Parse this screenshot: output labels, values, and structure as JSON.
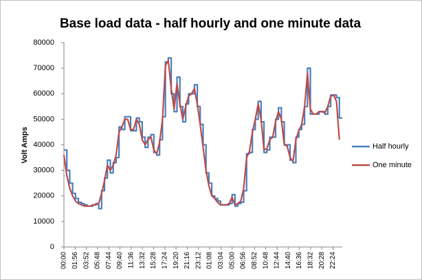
{
  "chart_data": {
    "type": "line",
    "title": "Base load data - half hourly and one minute data",
    "y_label": "Volt Amps",
    "x": [
      0,
      30,
      60,
      90,
      120,
      150,
      180,
      210,
      240,
      270,
      300,
      330,
      360,
      390,
      420,
      450,
      480,
      510,
      540,
      570,
      600,
      630,
      660,
      690,
      720,
      750,
      780,
      810,
      840,
      870,
      900,
      930,
      960,
      990,
      1020,
      1050,
      1080,
      1110,
      1140,
      1170,
      1200,
      1230,
      1260,
      1290,
      1320,
      1350,
      1380,
      1410,
      1440,
      1470,
      1500,
      1530,
      1560,
      1590,
      1620,
      1650,
      1680,
      1710,
      1740,
      1770,
      1800,
      1830,
      1860,
      1890,
      1920,
      1950,
      1980,
      2010,
      2040,
      2070,
      2100,
      2130,
      2160,
      2190,
      2220,
      2250,
      2280,
      2310,
      2340,
      2370,
      2400,
      2430,
      2460,
      2490,
      2520,
      2550,
      2580,
      2610,
      2640,
      2670,
      2700,
      2730,
      2760,
      2790,
      2820,
      2850
    ],
    "series": [
      {
        "name": "Half hourly",
        "color": "#4a7ebb",
        "step": true,
        "values": [
          38000,
          30000,
          25000,
          21000,
          19000,
          17500,
          17000,
          16500,
          16000,
          16000,
          16500,
          17000,
          15000,
          22000,
          27000,
          34000,
          29000,
          33000,
          35000,
          47000,
          46000,
          51000,
          51000,
          45500,
          45500,
          50500,
          49000,
          43000,
          39000,
          43000,
          44000,
          37000,
          36000,
          42000,
          51000,
          72500,
          74000,
          60000,
          53000,
          66500,
          55000,
          49000,
          56000,
          60000,
          60000,
          63500,
          55000,
          48000,
          40000,
          29000,
          25000,
          20000,
          19000,
          18000,
          16500,
          16500,
          16500,
          17000,
          20500,
          16000,
          17000,
          17500,
          22000,
          36500,
          37000,
          46000,
          50000,
          57000,
          49000,
          37000,
          38000,
          43000,
          43000,
          50000,
          54500,
          49000,
          40000,
          40000,
          34000,
          33000,
          43000,
          46000,
          48000,
          55000,
          70000,
          52000,
          52000,
          52000,
          53000,
          53000,
          52000,
          55000,
          59500,
          59500,
          58500,
          50500
        ]
      },
      {
        "name": "One minute",
        "color": "#be4b48",
        "step": false,
        "values": [
          36000,
          28000,
          23000,
          20000,
          18000,
          17000,
          16500,
          16000,
          16000,
          16000,
          16500,
          16500,
          17000,
          21000,
          26000,
          32000,
          30000,
          32000,
          36000,
          45000,
          47000,
          50000,
          50000,
          46000,
          46000,
          50000,
          48000,
          42000,
          40000,
          42000,
          43000,
          38000,
          36500,
          41000,
          50000,
          71000,
          73000,
          62000,
          54000,
          64000,
          56000,
          50000,
          55000,
          59000,
          60000,
          62000,
          56000,
          48000,
          39000,
          30000,
          24000,
          20000,
          19000,
          17500,
          16500,
          16500,
          16500,
          17000,
          19500,
          16500,
          17000,
          18000,
          23000,
          35000,
          37500,
          45000,
          50000,
          56000,
          50000,
          38000,
          38500,
          42000,
          43000,
          49000,
          53000,
          50000,
          40000,
          39500,
          35000,
          33500,
          42000,
          45500,
          48000,
          55000,
          68000,
          54000,
          52000,
          52000,
          53000,
          53000,
          52500,
          55000,
          59000,
          59500,
          57000,
          42000
        ]
      }
    ],
    "xlim": [
      0,
      2880
    ],
    "xticks": [
      {
        "value": 0,
        "label": "00:00"
      },
      {
        "value": 116,
        "label": "01:56"
      },
      {
        "value": 232,
        "label": "03:52"
      },
      {
        "value": 348,
        "label": "05:48"
      },
      {
        "value": 464,
        "label": "07:44"
      },
      {
        "value": 580,
        "label": "09:40"
      },
      {
        "value": 696,
        "label": "11:36"
      },
      {
        "value": 812,
        "label": "13:32"
      },
      {
        "value": 928,
        "label": "15:28"
      },
      {
        "value": 1044,
        "label": "17:24"
      },
      {
        "value": 1160,
        "label": "19:20"
      },
      {
        "value": 1276,
        "label": "21:16"
      },
      {
        "value": 1392,
        "label": "23:12"
      },
      {
        "value": 1508,
        "label": "01:08"
      },
      {
        "value": 1624,
        "label": "03:04"
      },
      {
        "value": 1740,
        "label": "05:00"
      },
      {
        "value": 1856,
        "label": "06:56"
      },
      {
        "value": 1972,
        "label": "08:52"
      },
      {
        "value": 2088,
        "label": "10:48"
      },
      {
        "value": 2204,
        "label": "12:44"
      },
      {
        "value": 2320,
        "label": "14:40"
      },
      {
        "value": 2436,
        "label": "16:36"
      },
      {
        "value": 2552,
        "label": "18:32"
      },
      {
        "value": 2668,
        "label": "20:28"
      },
      {
        "value": 2784,
        "label": "22:24"
      }
    ],
    "ylim": [
      0,
      80000
    ],
    "yticks": [
      0,
      10000,
      20000,
      30000,
      40000,
      50000,
      60000,
      70000,
      80000
    ],
    "grid": false,
    "legend": "right"
  }
}
